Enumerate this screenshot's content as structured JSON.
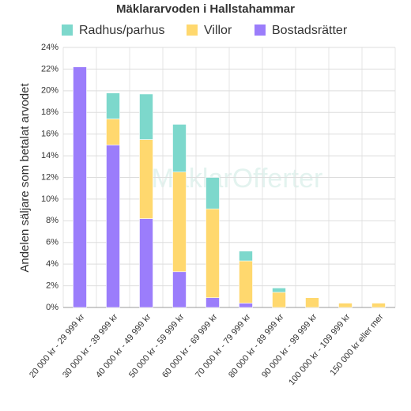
{
  "chart_data": {
    "type": "stacked_bar",
    "title": "Mäklararvoden i Hallstahammar",
    "y_label": "Andelen säljare som betalat arvodet",
    "watermark": "MäklarOfferter",
    "categories": [
      "20 000 kr - 29 999 kr",
      "30 000 kr - 39 999 kr",
      "40 000 kr - 49 999 kr",
      "50 000 kr - 59 999 kr",
      "60 000 kr - 69 999 kr",
      "70 000 kr - 79 999 kr",
      "80 000 kr - 89 999 kr",
      "90 000 kr - 99 999 kr",
      "100 000 kr - 109 999 kr",
      "150 000 kr eller mer"
    ],
    "series": [
      {
        "name": "Radhus/parhus",
        "color": "#7dd8cc",
        "values": [
          0,
          2.4,
          4.2,
          4.4,
          2.9,
          0.9,
          0.4,
          0,
          0,
          0
        ]
      },
      {
        "name": "Villor",
        "color": "#ffd86e",
        "values": [
          0,
          2.4,
          7.3,
          9.2,
          8.2,
          3.9,
          1.4,
          0.9,
          0.4,
          0.4
        ]
      },
      {
        "name": "Bostadsrätter",
        "color": "#9b7dfb",
        "values": [
          22.2,
          15.0,
          8.2,
          3.3,
          0.9,
          0.4,
          0,
          0,
          0,
          0
        ]
      }
    ],
    "ylim": [
      0,
      24
    ],
    "yticks": [
      {
        "value": 0,
        "label": "0%"
      },
      {
        "value": 2,
        "label": "2%"
      },
      {
        "value": 4,
        "label": "4%"
      },
      {
        "value": 6,
        "label": "6%"
      },
      {
        "value": 8,
        "label": "8%"
      },
      {
        "value": 10,
        "label": "10%"
      },
      {
        "value": 12,
        "label": "12%"
      },
      {
        "value": 14,
        "label": "14%"
      },
      {
        "value": 16,
        "label": "16%"
      },
      {
        "value": 18,
        "label": "18%"
      },
      {
        "value": 20,
        "label": "20%"
      },
      {
        "value": 22,
        "label": "22%"
      },
      {
        "value": 24,
        "label": "24%"
      }
    ],
    "grid": true
  }
}
